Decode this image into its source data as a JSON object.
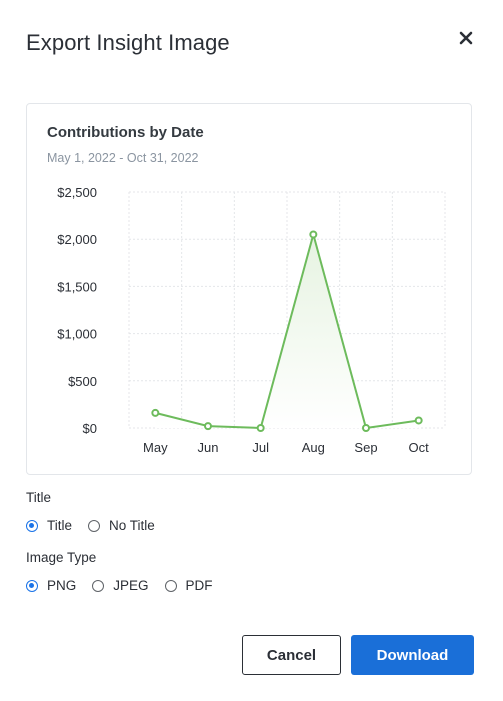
{
  "dialog": {
    "title": "Export Insight Image",
    "close_icon": "close-icon"
  },
  "card": {
    "title": "Contributions by Date",
    "subtitle": "May 1, 2022 - Oct 31, 2022"
  },
  "chart_data": {
    "type": "area",
    "title": "Contributions by Date",
    "subtitle": "May 1, 2022 - Oct 31, 2022",
    "categories": [
      "May",
      "Jun",
      "Jul",
      "Aug",
      "Sep",
      "Oct"
    ],
    "values": [
      160,
      20,
      0,
      2050,
      0,
      80
    ],
    "y_ticks": [
      "$0",
      "$500",
      "$1,000",
      "$1,500",
      "$2,000",
      "$2,500"
    ],
    "ylim": [
      0,
      2500
    ],
    "grid": true,
    "line_color": "#6dbb5c",
    "fill_color": "#e6f3e1"
  },
  "title_section": {
    "label": "Title",
    "options": [
      {
        "label": "Title",
        "checked": true
      },
      {
        "label": "No Title",
        "checked": false
      }
    ]
  },
  "image_type_section": {
    "label": "Image Type",
    "options": [
      {
        "label": "PNG",
        "checked": true
      },
      {
        "label": "JPEG",
        "checked": false
      },
      {
        "label": "PDF",
        "checked": false
      }
    ]
  },
  "buttons": {
    "cancel": "Cancel",
    "download": "Download"
  },
  "colors": {
    "accent": "#1a6fd8",
    "radio_checked": "#1a73e8"
  }
}
